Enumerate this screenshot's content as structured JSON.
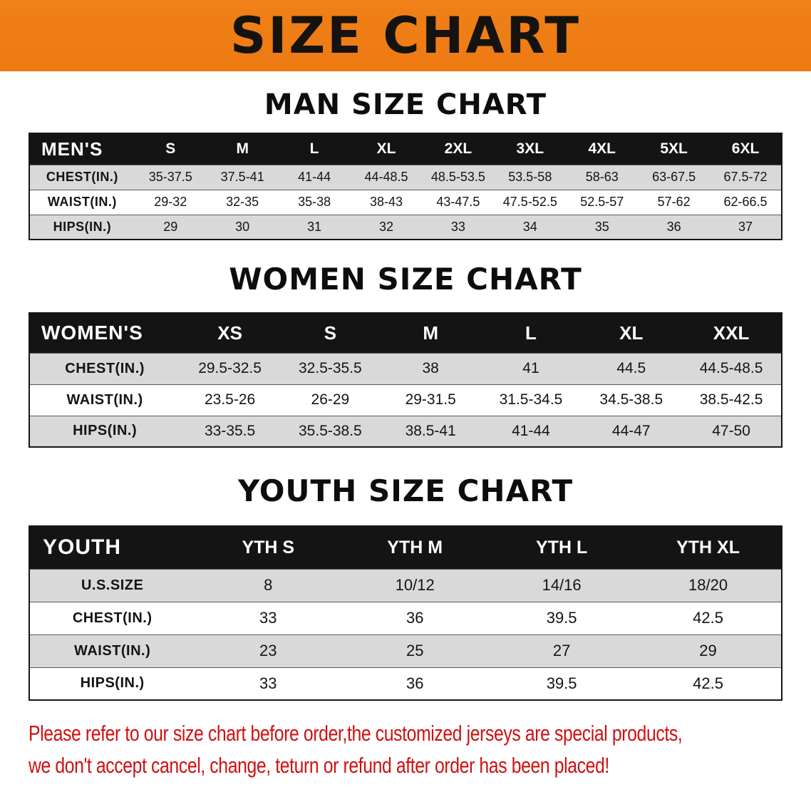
{
  "banner": {
    "title": "SIZE CHART"
  },
  "sections": [
    {
      "title": "MAN SIZE CHART",
      "header_label": "MEN'S",
      "columns": [
        "S",
        "M",
        "L",
        "XL",
        "2XL",
        "3XL",
        "4XL",
        "5XL",
        "6XL"
      ],
      "rows": [
        {
          "label": "CHEST(IN.)",
          "values": [
            "35-37.5",
            "37.5-41",
            "41-44",
            "44-48.5",
            "48.5-53.5",
            "53.5-58",
            "58-63",
            "63-67.5",
            "67.5-72"
          ]
        },
        {
          "label": "WAIST(IN.)",
          "values": [
            "29-32",
            "32-35",
            "35-38",
            "38-43",
            "43-47.5",
            "47.5-52.5",
            "52.5-57",
            "57-62",
            "62-66.5"
          ]
        },
        {
          "label": "HIPS(IN.)",
          "values": [
            "29",
            "30",
            "31",
            "32",
            "33",
            "34",
            "35",
            "36",
            "37"
          ]
        }
      ]
    },
    {
      "title": "WOMEN SIZE CHART",
      "header_label": "WOMEN'S",
      "columns": [
        "XS",
        "S",
        "M",
        "L",
        "XL",
        "XXL"
      ],
      "rows": [
        {
          "label": "CHEST(IN.)",
          "values": [
            "29.5-32.5",
            "32.5-35.5",
            "38",
            "41",
            "44.5",
            "44.5-48.5"
          ]
        },
        {
          "label": "WAIST(IN.)",
          "values": [
            "23.5-26",
            "26-29",
            "29-31.5",
            "31.5-34.5",
            "34.5-38.5",
            "38.5-42.5"
          ]
        },
        {
          "label": "HIPS(IN.)",
          "values": [
            "33-35.5",
            "35.5-38.5",
            "38.5-41",
            "41-44",
            "44-47",
            "47-50"
          ]
        }
      ]
    },
    {
      "title": "YOUTH SIZE CHART",
      "header_label": "YOUTH",
      "columns": [
        "YTH S",
        "YTH M",
        "YTH L",
        "YTH XL"
      ],
      "rows": [
        {
          "label": "U.S.SIZE",
          "values": [
            "8",
            "10/12",
            "14/16",
            "18/20"
          ]
        },
        {
          "label": "CHEST(IN.)",
          "values": [
            "33",
            "36",
            "39.5",
            "42.5"
          ]
        },
        {
          "label": "WAIST(IN.)",
          "values": [
            "23",
            "25",
            "27",
            "29"
          ]
        },
        {
          "label": "HIPS(IN.)",
          "values": [
            "33",
            "36",
            "39.5",
            "42.5"
          ]
        }
      ]
    }
  ],
  "disclaimer": {
    "line1": "Please refer to our size chart before order,the customized jerseys are special products,",
    "line2": "we don't accept cancel, change, teturn or refund after order has been placed!"
  },
  "colors": {
    "banner_bg": "#f08018",
    "header_bg": "#141414",
    "stripe_bg": "#d9d9d9",
    "disclaimer_text": "#cf1111"
  }
}
